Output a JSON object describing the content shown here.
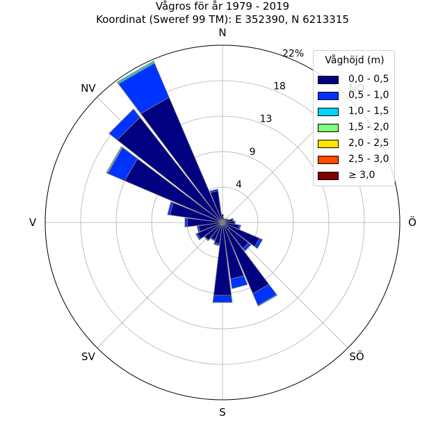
{
  "chart_data": {
    "type": "polar-bar",
    "title": "Vågros för år 1979 - 2019",
    "subtitle": "Koordinat (Sweref 99 TM): E 352390, N 6213315",
    "directions": [
      "N",
      "NO",
      "Ö",
      "SÖ",
      "S",
      "SV",
      "V",
      "NV"
    ],
    "radial_ticks": [
      "4",
      "9",
      "13",
      "18",
      "22%"
    ],
    "radial_tick_values": [
      4.4,
      8.8,
      13.2,
      17.6,
      22
    ],
    "rmax": 22,
    "legend_title": "Våghöjd (m)",
    "legend_placement": "top-right",
    "bins": [
      {
        "label": "0,0 - 0,5",
        "color": "#000080"
      },
      {
        "label": "0,5 - 1,0",
        "color": "#0033ff"
      },
      {
        "label": "1,0 - 1,5",
        "color": "#00d5ff"
      },
      {
        "label": "1,5 - 2,0",
        "color": "#7dff7a"
      },
      {
        "label": "2,0 - 2,5",
        "color": "#ffe600"
      },
      {
        "label": "2,5 - 3,0",
        "color": "#ff4a00"
      },
      {
        "label": "≥ 3,0",
        "color": "#800000"
      }
    ],
    "sector_width_deg": 15,
    "sectors": [
      {
        "direction_deg": 0,
        "values": [
          1.0,
          0.0,
          0,
          0,
          0,
          0,
          0
        ]
      },
      {
        "direction_deg": 15,
        "values": [
          0.6,
          0.0,
          0,
          0,
          0,
          0,
          0
        ]
      },
      {
        "direction_deg": 30,
        "values": [
          0.5,
          0.0,
          0,
          0,
          0,
          0,
          0
        ]
      },
      {
        "direction_deg": 45,
        "values": [
          0.6,
          0.0,
          0,
          0,
          0,
          0,
          0
        ]
      },
      {
        "direction_deg": 60,
        "values": [
          0.8,
          0.0,
          0,
          0,
          0,
          0,
          0
        ]
      },
      {
        "direction_deg": 75,
        "values": [
          1.3,
          0.1,
          0,
          0,
          0,
          0,
          0
        ]
      },
      {
        "direction_deg": 90,
        "values": [
          1.5,
          0.1,
          0,
          0,
          0,
          0,
          0
        ]
      },
      {
        "direction_deg": 105,
        "values": [
          2.1,
          0.2,
          0,
          0,
          0,
          0,
          0
        ]
      },
      {
        "direction_deg": 120,
        "values": [
          5.0,
          0.4,
          0,
          0,
          0,
          0,
          0
        ]
      },
      {
        "direction_deg": 135,
        "values": [
          4.1,
          0.4,
          0,
          0,
          0,
          0,
          0
        ]
      },
      {
        "direction_deg": 150,
        "values": [
          9.6,
          1.6,
          0.1,
          0,
          0,
          0,
          0
        ]
      },
      {
        "direction_deg": 165,
        "values": [
          7.1,
          1.2,
          0,
          0,
          0,
          0,
          0
        ]
      },
      {
        "direction_deg": 180,
        "values": [
          9.1,
          0.9,
          0,
          0,
          0,
          0,
          0
        ]
      },
      {
        "direction_deg": 195,
        "values": [
          2.7,
          0.2,
          0,
          0,
          0,
          0,
          0
        ]
      },
      {
        "direction_deg": 210,
        "values": [
          2.4,
          0.1,
          0,
          0,
          0,
          0,
          0
        ]
      },
      {
        "direction_deg": 225,
        "values": [
          2.8,
          0.1,
          0,
          0,
          0,
          0,
          0
        ]
      },
      {
        "direction_deg": 240,
        "values": [
          3.4,
          0.2,
          0,
          0,
          0,
          0,
          0
        ]
      },
      {
        "direction_deg": 255,
        "values": [
          3.0,
          0.2,
          0,
          0,
          0,
          0,
          0
        ]
      },
      {
        "direction_deg": 270,
        "values": [
          4.4,
          0.3,
          0,
          0,
          0,
          0,
          0
        ]
      },
      {
        "direction_deg": 285,
        "values": [
          6.6,
          0.3,
          0,
          0,
          0,
          0,
          0
        ]
      },
      {
        "direction_deg": 300,
        "values": [
          13.2,
          2.3,
          0.1,
          0.1,
          0,
          0,
          0
        ]
      },
      {
        "direction_deg": 315,
        "values": [
          16.6,
          1.3,
          0,
          0,
          0,
          0,
          0
        ]
      },
      {
        "direction_deg": 330,
        "values": [
          16.9,
          4.6,
          0.2,
          0.1,
          0,
          0,
          0
        ]
      },
      {
        "direction_deg": 345,
        "values": [
          4.0,
          0.2,
          0,
          0,
          0,
          0,
          0
        ]
      }
    ],
    "grid": true
  }
}
